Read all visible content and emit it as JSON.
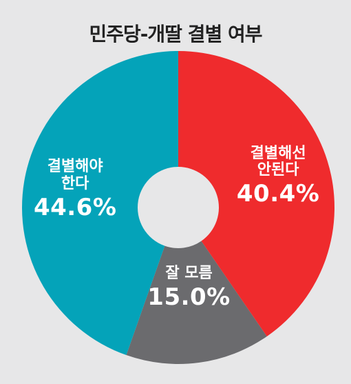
{
  "chart_data": {
    "type": "pie",
    "title": "민주당-개딸 결별 여부",
    "slices": [
      {
        "label": "결별해선\n안된다",
        "value": 40.4,
        "value_label": "40.4%",
        "color": "#ef2b2d"
      },
      {
        "label": "잘 모름",
        "value": 15.0,
        "value_label": "15.0%",
        "color": "#6b6b6e"
      },
      {
        "label": "결별해야\n한다",
        "value": 44.6,
        "value_label": "44.6%",
        "color": "#04a3b9"
      }
    ],
    "donut": true,
    "start_angle": "top, clockwise",
    "background": "#e7e7e8"
  }
}
